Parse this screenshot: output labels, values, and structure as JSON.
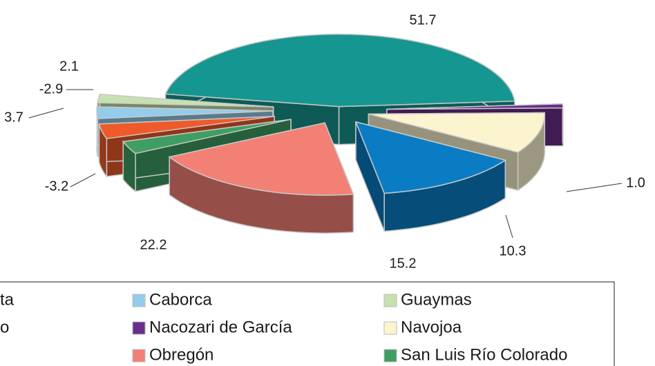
{
  "chart_data": {
    "type": "pie",
    "categories": [
      "ta",
      "Nacozari de García",
      "Navojoa",
      "o",
      "Obregón",
      "San Luis Río Colorado",
      null,
      "Caborca",
      "Guaymas"
    ],
    "values": [
      51.7,
      1.0,
      10.3,
      15.2,
      22.2,
      -3.2,
      3.7,
      -2.9,
      2.1
    ],
    "value_labels": [
      "51.7",
      "1.0",
      "10.3",
      "15.2",
      "22.2",
      "-3.2",
      "3.7",
      "-2.9",
      "2.1"
    ],
    "colors": [
      "#169690",
      "#6a2d8c",
      "#fbf4cf",
      "#0a7cc4",
      "#f28074",
      "#3f9e62",
      "#ef5a2a",
      "#94cdec",
      "#c6e1b0"
    ],
    "legend": true
  }
}
